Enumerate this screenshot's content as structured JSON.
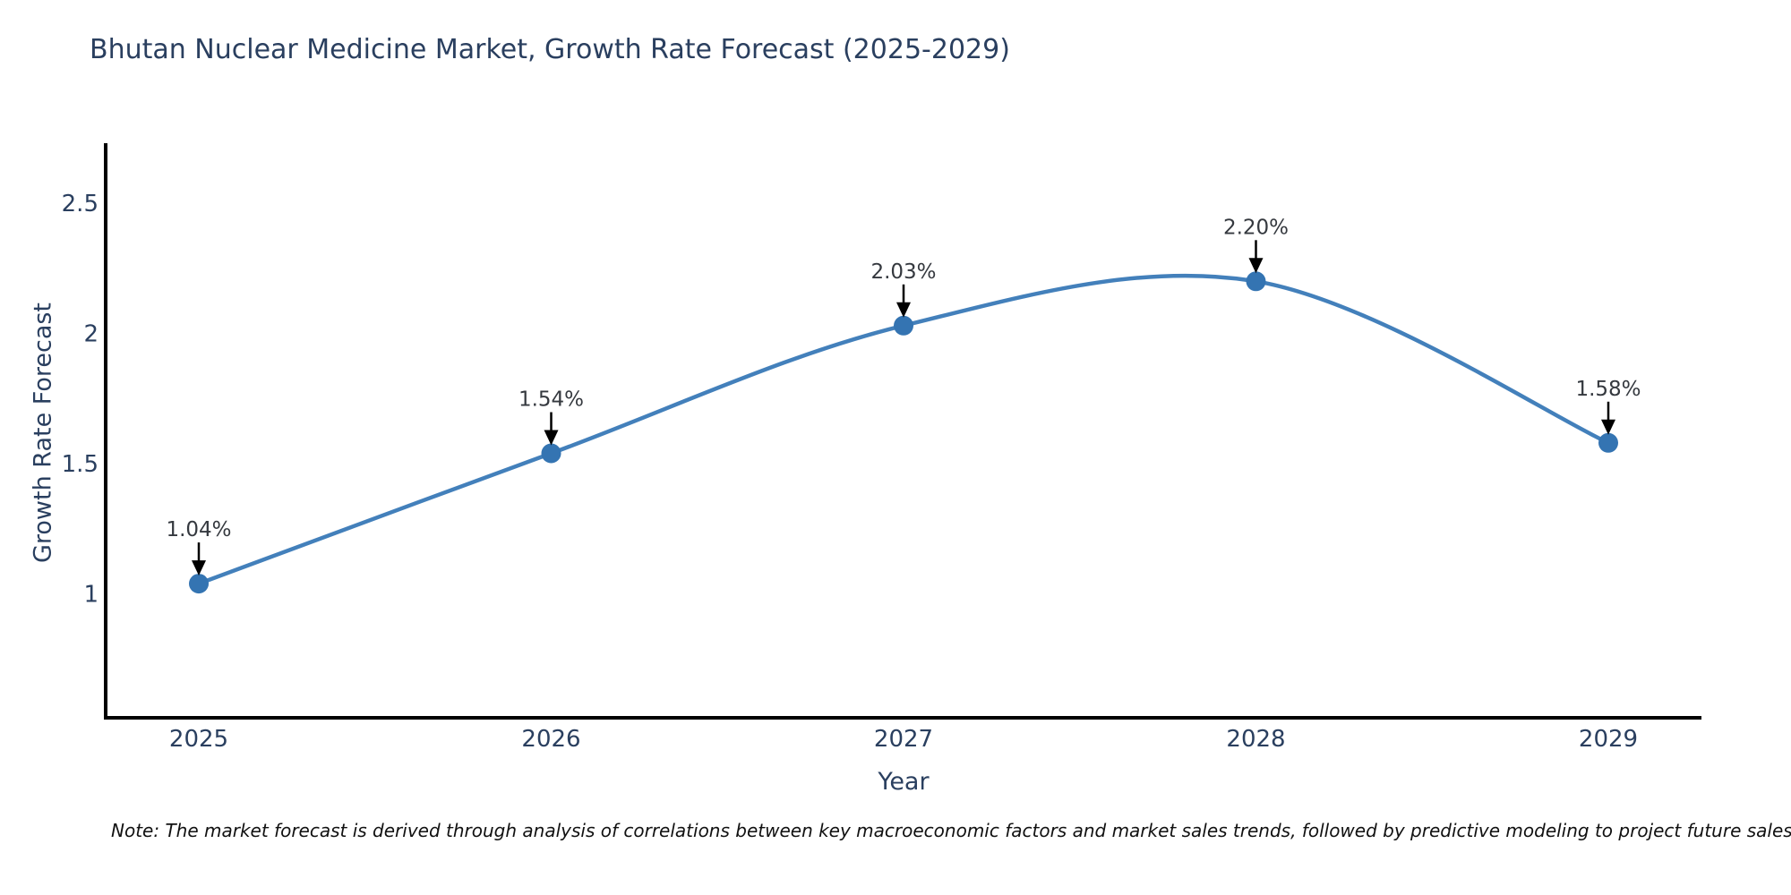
{
  "title": "Bhutan Nuclear Medicine Market, Growth Rate Forecast (2025-2029)",
  "note": "Note: The market forecast is derived through analysis of correlations between key macroeconomic factors and market sales trends, followed by predictive modeling to project future sales",
  "chart_data": {
    "type": "line",
    "subtype": "spline-with-markers",
    "title": "Bhutan Nuclear Medicine Market, Growth Rate Forecast (2025-2029)",
    "xlabel": "Year",
    "ylabel": "Growth Rate Forecast",
    "categories": [
      "2025",
      "2026",
      "2027",
      "2028",
      "2029"
    ],
    "values": [
      1.04,
      1.54,
      2.03,
      2.2,
      1.58
    ],
    "point_labels": [
      "1.04%",
      "1.54%",
      "2.03%",
      "2.20%",
      "1.58%"
    ],
    "ytick_values": [
      1,
      1.5,
      2,
      2.5
    ],
    "ytick_labels": [
      "1",
      "1.5",
      "2",
      "2.5"
    ],
    "ylim": [
      0.525,
      2.73
    ],
    "grid": false,
    "legend": "none",
    "colors": {
      "line": "#4380bb",
      "marker": "#3474b2",
      "axis": "#000000",
      "title_text": "#2a3f5f",
      "tick_text": "#2a3f5f",
      "annotation_text": "#35393f",
      "annotation_arrow": "#000000",
      "background": "#ffffff"
    }
  }
}
